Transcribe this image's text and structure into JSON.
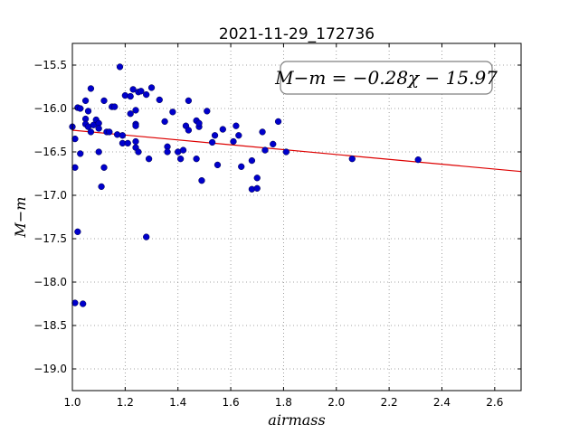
{
  "chart_data": {
    "type": "scatter",
    "title": "2021-11-29_172736",
    "xlabel": "airmass",
    "ylabel": "M−m",
    "annotation": "M−m = −0.28χ − 15.97",
    "xlim": [
      1.0,
      2.7
    ],
    "ylim": [
      -19.25,
      -15.25
    ],
    "y_inverted": true,
    "grid": true,
    "x_ticks": [
      1.0,
      1.2,
      1.4,
      1.6,
      1.8,
      2.0,
      2.2,
      2.4,
      2.6
    ],
    "x_tick_labels": [
      "1.0",
      "1.2",
      "1.4",
      "1.6",
      "1.8",
      "2.0",
      "2.2",
      "2.4",
      "2.6"
    ],
    "y_ticks": [
      -15.5,
      -16.0,
      -16.5,
      -17.0,
      -17.5,
      -18.0,
      -18.5,
      -19.0
    ],
    "y_tick_labels": [
      "−15.5",
      "−16.0",
      "−16.5",
      "−17.0",
      "−17.5",
      "−18.0",
      "−18.5",
      "−19.0"
    ],
    "fit": {
      "slope": -0.28,
      "intercept": -15.97,
      "x_range": [
        1.0,
        2.7
      ]
    },
    "colors": {
      "points": "#0000cc",
      "fit": "#dd0000",
      "grid": "#888888"
    },
    "points": [
      [
        1.0,
        -16.21
      ],
      [
        1.01,
        -16.35
      ],
      [
        1.01,
        -16.68
      ],
      [
        1.02,
        -15.99
      ],
      [
        1.03,
        -16.0
      ],
      [
        1.03,
        -16.52
      ],
      [
        1.05,
        -15.91
      ],
      [
        1.05,
        -16.12
      ],
      [
        1.05,
        -16.18
      ],
      [
        1.06,
        -16.03
      ],
      [
        1.06,
        -16.21
      ],
      [
        1.07,
        -16.27
      ],
      [
        1.07,
        -15.77
      ],
      [
        1.08,
        -16.19
      ],
      [
        1.09,
        -16.13
      ],
      [
        1.1,
        -16.17
      ],
      [
        1.1,
        -16.23
      ],
      [
        1.1,
        -16.5
      ],
      [
        1.11,
        -16.9
      ],
      [
        1.12,
        -16.68
      ],
      [
        1.12,
        -15.91
      ],
      [
        1.13,
        -16.27
      ],
      [
        1.14,
        -16.27
      ],
      [
        1.15,
        -15.98
      ],
      [
        1.16,
        -15.98
      ],
      [
        1.17,
        -16.3
      ],
      [
        1.18,
        -15.52
      ],
      [
        1.19,
        -16.31
      ],
      [
        1.19,
        -16.4
      ],
      [
        1.2,
        -15.85
      ],
      [
        1.21,
        -16.4
      ],
      [
        1.22,
        -16.06
      ],
      [
        1.22,
        -15.86
      ],
      [
        1.23,
        -15.78
      ],
      [
        1.24,
        -16.02
      ],
      [
        1.24,
        -16.18
      ],
      [
        1.24,
        -16.2
      ],
      [
        1.24,
        -16.38
      ],
      [
        1.24,
        -16.45
      ],
      [
        1.25,
        -15.81
      ],
      [
        1.25,
        -16.5
      ],
      [
        1.26,
        -15.8
      ],
      [
        1.28,
        -17.48
      ],
      [
        1.28,
        -15.84
      ],
      [
        1.29,
        -16.58
      ],
      [
        1.3,
        -15.76
      ],
      [
        1.33,
        -15.9
      ],
      [
        1.35,
        -16.15
      ],
      [
        1.36,
        -16.44
      ],
      [
        1.36,
        -16.5
      ],
      [
        1.38,
        -16.04
      ],
      [
        1.4,
        -16.5
      ],
      [
        1.41,
        -16.58
      ],
      [
        1.42,
        -16.48
      ],
      [
        1.43,
        -16.2
      ],
      [
        1.44,
        -15.91
      ],
      [
        1.44,
        -16.25
      ],
      [
        1.47,
        -16.58
      ],
      [
        1.47,
        -16.14
      ],
      [
        1.48,
        -16.21
      ],
      [
        1.48,
        -16.17
      ],
      [
        1.49,
        -16.83
      ],
      [
        1.51,
        -16.03
      ],
      [
        1.53,
        -16.39
      ],
      [
        1.54,
        -16.31
      ],
      [
        1.55,
        -16.65
      ],
      [
        1.57,
        -16.24
      ],
      [
        1.61,
        -16.38
      ],
      [
        1.62,
        -16.2
      ],
      [
        1.63,
        -16.31
      ],
      [
        1.64,
        -16.67
      ],
      [
        1.68,
        -16.93
      ],
      [
        1.68,
        -16.6
      ],
      [
        1.7,
        -16.8
      ],
      [
        1.7,
        -16.92
      ],
      [
        1.72,
        -16.27
      ],
      [
        1.73,
        -16.48
      ],
      [
        1.76,
        -16.41
      ],
      [
        1.78,
        -16.15
      ],
      [
        1.81,
        -16.5
      ],
      [
        2.06,
        -16.58
      ],
      [
        2.31,
        -16.59
      ],
      [
        1.01,
        -18.24
      ],
      [
        1.04,
        -18.25
      ],
      [
        1.02,
        -17.42
      ]
    ]
  }
}
